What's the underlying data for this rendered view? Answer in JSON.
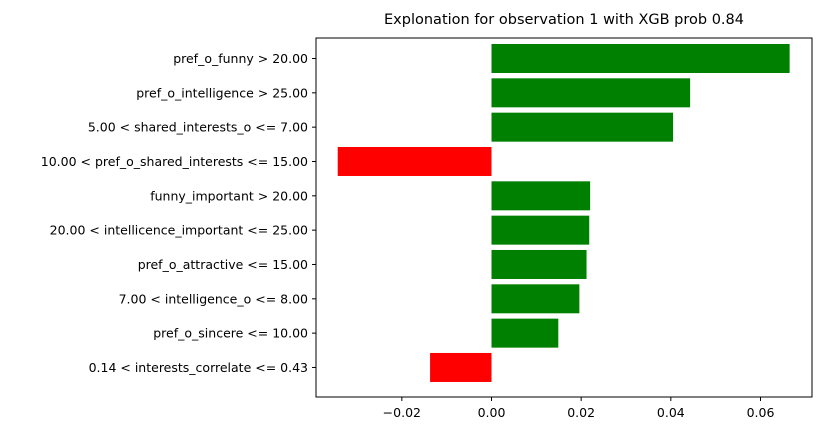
{
  "chart_data": {
    "type": "bar",
    "orientation": "horizontal",
    "title": "Explonation for observation 1 with XGB prob 0.84",
    "xlabel": "",
    "ylabel": "",
    "xlim": [
      -0.04,
      0.07
    ],
    "xticks": [
      -0.02,
      0.0,
      0.02,
      0.04,
      0.06
    ],
    "xtick_labels": [
      "−0.02",
      "0.00",
      "0.02",
      "0.04",
      "0.06"
    ],
    "grid": false,
    "legend": "none",
    "colors": {
      "positive": "#008000",
      "negative": "#ff0000"
    },
    "categories": [
      "pref_o_funny > 20.00",
      "pref_o_intelligence > 25.00",
      "5.00 < shared_interests_o <= 7.00",
      "10.00 < pref_o_shared_interests <= 15.00",
      "funny_important > 20.00",
      "20.00 < intellicence_important <= 25.00",
      "pref_o_attractive <= 15.00",
      "7.00 < intelligence_o <= 8.00",
      "pref_o_sincere <= 10.00",
      "0.14 < interests_correlate <= 0.43"
    ],
    "values": [
      0.0665,
      0.0443,
      0.0405,
      -0.0343,
      0.022,
      0.0218,
      0.0212,
      0.0196,
      0.0149,
      -0.0137
    ]
  }
}
